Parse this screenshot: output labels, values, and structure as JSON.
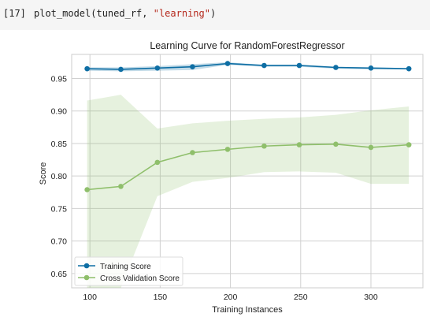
{
  "cell": {
    "prompt": "[17]",
    "code_before": "plot_model(tuned_rf, ",
    "code_string": "\"learning\"",
    "code_after": ")"
  },
  "colors": {
    "training": "#0e6ea4",
    "cv": "#8fbf6b",
    "grid": "#d0d0d0",
    "axis": "#bbbbbb",
    "text": "#222222"
  },
  "chart_data": {
    "type": "line",
    "title": "Learning Curve for RandomForestRegressor",
    "xlabel": "Training Instances",
    "ylabel": "Score",
    "xlim": [
      87,
      337
    ],
    "ylim": [
      0.628,
      0.987
    ],
    "xticks": [
      100,
      150,
      200,
      250,
      300
    ],
    "yticks": [
      0.65,
      0.7,
      0.75,
      0.8,
      0.85,
      0.9,
      0.95
    ],
    "ytick_labels": [
      "0.65",
      "0.70",
      "0.75",
      "0.80",
      "0.85",
      "0.90",
      "0.95"
    ],
    "grid": true,
    "legend_position": "lower-left",
    "x": [
      98,
      122,
      148,
      173,
      198,
      224,
      249,
      275,
      300,
      327
    ],
    "series": [
      {
        "name": "Training Score",
        "values": [
          0.965,
          0.964,
          0.966,
          0.968,
          0.973,
          0.97,
          0.97,
          0.967,
          0.966,
          0.965
        ],
        "band_upper": [
          0.967,
          0.967,
          0.969,
          0.972,
          0.975,
          0.971,
          0.971,
          0.968,
          0.967,
          0.966
        ],
        "band_lower": [
          0.962,
          0.961,
          0.962,
          0.963,
          0.971,
          0.968,
          0.968,
          0.965,
          0.964,
          0.964
        ]
      },
      {
        "name": "Cross Validation Score",
        "values": [
          0.779,
          0.784,
          0.821,
          0.836,
          0.841,
          0.846,
          0.848,
          0.849,
          0.844,
          0.848
        ],
        "band_upper": [
          0.916,
          0.925,
          0.873,
          0.881,
          0.885,
          0.888,
          0.89,
          0.894,
          0.901,
          0.907
        ],
        "band_lower": [
          0.628,
          0.628,
          0.769,
          0.791,
          0.797,
          0.806,
          0.807,
          0.805,
          0.788,
          0.788
        ]
      }
    ]
  }
}
